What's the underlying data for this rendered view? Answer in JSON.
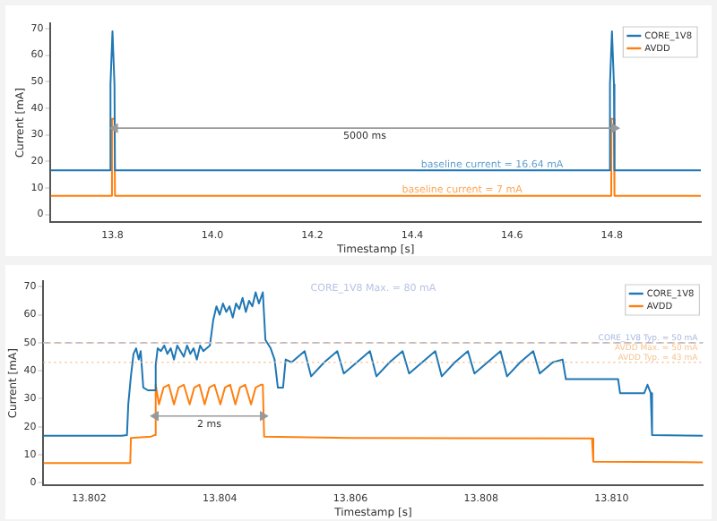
{
  "chart_data": [
    {
      "type": "line",
      "xlabel": "Timestamp [s]",
      "ylabel": "Current [mA]",
      "xlim": [
        13.676,
        14.978
      ],
      "xticks": [
        {
          "value": 13.8,
          "label": "13.8"
        },
        {
          "value": 14.0,
          "label": "14.0"
        },
        {
          "value": 14.2,
          "label": "14.2"
        },
        {
          "value": 14.4,
          "label": "14.4"
        },
        {
          "value": 14.6,
          "label": "14.6"
        },
        {
          "value": 14.8,
          "label": "14.8"
        }
      ],
      "ylim": [
        -3,
        72
      ],
      "yticks": [
        0,
        10,
        20,
        30,
        40,
        50,
        60,
        70
      ],
      "grid": false,
      "legend": "top right",
      "series": [
        {
          "name": "CORE_1V8",
          "color": "#1f77b4",
          "x": [
            13.676,
            13.795,
            13.796,
            13.8,
            13.804,
            13.805,
            14.795,
            14.796,
            14.8,
            14.804,
            14.805,
            14.978
          ],
          "values": [
            16.6,
            16.6,
            49,
            69,
            49,
            16.6,
            16.6,
            49,
            69,
            49,
            16.6,
            16.6
          ]
        },
        {
          "name": "AVDD",
          "color": "#ff7f0e",
          "x": [
            13.676,
            13.7985,
            13.799,
            13.804,
            13.805,
            14.7985,
            14.799,
            14.804,
            14.805,
            14.978
          ],
          "values": [
            7,
            7,
            36,
            36,
            7,
            7,
            36,
            36,
            7,
            7
          ]
        },
        {
          "color": "#999999",
          "marker": "triangle",
          "x": [
            13.805,
            14.805
          ],
          "values": [
            32.5,
            32.5
          ]
        }
      ],
      "annotations": [
        {
          "text": "5000 ms",
          "x": 14.305,
          "y": 32.5
        },
        {
          "text": "baseline current = 16.64 mA",
          "x": 14.56,
          "y": 18.8
        },
        {
          "text": "baseline current = 7 mA",
          "x": 14.5,
          "y": 9.2
        }
      ]
    },
    {
      "type": "line",
      "xlabel": "Timestamp [s]",
      "ylabel": "Current [mA]",
      "xlim": [
        13.8013,
        13.8114
      ],
      "xticks": [
        13.802,
        13.804,
        13.806,
        13.808,
        {
          "value": 13.81,
          "label": "13.810"
        }
      ],
      "ylim": [
        -1,
        72
      ],
      "yticks": [
        0,
        10,
        20,
        30,
        40,
        50,
        60,
        70
      ],
      "grid": false,
      "legend": "top right",
      "series": [
        {
          "name": "CORE_1V8",
          "color": "#1f77b4",
          "x": [
            13.8013,
            13.8025,
            13.80258,
            13.8026,
            13.80264,
            13.80268,
            13.80272,
            13.80276,
            13.80279,
            13.80283,
            13.8029,
            13.803,
            13.80302,
            13.80305,
            13.8031,
            13.80315,
            13.8032,
            13.80325,
            13.8033,
            13.80335,
            13.8034,
            13.80345,
            13.8035,
            13.80355,
            13.8036,
            13.80365,
            13.8037,
            13.80375,
            13.8038,
            13.80385,
            13.8039,
            13.80395,
            13.804,
            13.80405,
            13.8041,
            13.80415,
            13.8042,
            13.80425,
            13.8043,
            13.80435,
            13.8044,
            13.80445,
            13.8045,
            13.80455,
            13.8046,
            13.80466,
            13.8047,
            13.80478,
            13.80484,
            13.80489,
            13.80497,
            13.80501,
            13.8051,
            13.8053,
            13.8054,
            13.8056,
            13.8058,
            13.8059,
            13.8061,
            13.8063,
            13.8064,
            13.8066,
            13.8068,
            13.8069,
            13.8071,
            13.8073,
            13.8074,
            13.8076,
            13.8078,
            13.8079,
            13.8081,
            13.8083,
            13.8084,
            13.8086,
            13.8088,
            13.8089,
            13.8091,
            13.80925,
            13.8093,
            13.8101,
            13.81013,
            13.8105,
            13.81055,
            13.8106,
            13.81062,
            13.8114
          ],
          "values": [
            16.8,
            16.8,
            17,
            28,
            38,
            46,
            48,
            44,
            47,
            34,
            33,
            33,
            42,
            48,
            47,
            49,
            46,
            48,
            44,
            49,
            47,
            45,
            49,
            46,
            48,
            44,
            49,
            47,
            48,
            49,
            58,
            63,
            60,
            64,
            61,
            63,
            59,
            64,
            62,
            66,
            61,
            65,
            63,
            68,
            64,
            68,
            51,
            48,
            44,
            34,
            34,
            44,
            43,
            47,
            38,
            43,
            47,
            39,
            43,
            47,
            38,
            43,
            47,
            39,
            43,
            47,
            38,
            43,
            47,
            39,
            43,
            47,
            38,
            43,
            47,
            39,
            43,
            44,
            37,
            37,
            32,
            32,
            35,
            32,
            17,
            16.8
          ]
        },
        {
          "name": "AVDD",
          "color": "#ff7f0e",
          "x": [
            13.8013,
            13.80263,
            13.80264,
            13.80295,
            13.803,
            13.80302,
            13.80307,
            13.80314,
            13.80322,
            13.8033,
            13.80337,
            13.80345,
            13.80354,
            13.80361,
            13.80369,
            13.80377,
            13.80384,
            13.80392,
            13.80401,
            13.80408,
            13.80416,
            13.80424,
            13.80431,
            13.80439,
            13.80448,
            13.80455,
            13.80463,
            13.80466,
            13.80468,
            13.806,
            13.8097,
            13.80972,
            13.8114
          ],
          "values": [
            7,
            7,
            16,
            16.5,
            17,
            35,
            28,
            34,
            35,
            28,
            34,
            35,
            28,
            34,
            35,
            28,
            34,
            35,
            28,
            34,
            35,
            28,
            34,
            35,
            28,
            34,
            35,
            35,
            16.5,
            16,
            15.8,
            7.5,
            7.3
          ]
        },
        {
          "color": "#999999",
          "marker": "triangle",
          "x": [
            13.80302,
            13.80466
          ],
          "values": [
            23.8,
            23.8
          ]
        }
      ],
      "ref_lines": [
        {
          "axis": "y",
          "value": 50,
          "label": "CORE_1V8 Typ. = 50 mA",
          "color": "#a9b9e0",
          "line_style": "dashed"
        },
        {
          "axis": "y",
          "value": 50,
          "label": "AVDD Max. = 50 mA",
          "color": "#f5c392",
          "line_style": "dotted"
        },
        {
          "axis": "y",
          "value": 43,
          "label": "AVDD Typ. = 43 mA",
          "color": "#f5c392",
          "line_style": "dotted"
        }
      ],
      "annotations": [
        "CORE_1V8 Max. = 80 mA",
        {
          "text": "2 ms",
          "x": 13.80384,
          "y": 23.8
        }
      ]
    }
  ]
}
